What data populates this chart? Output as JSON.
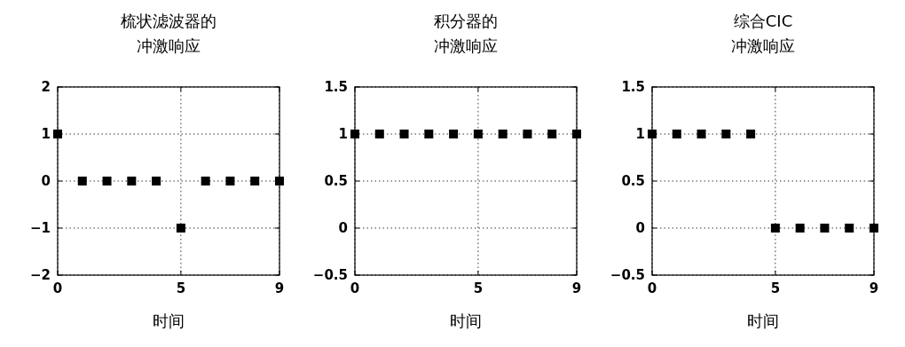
{
  "chart_data": [
    {
      "type": "scatter",
      "title": "梳状滤波器的",
      "subtitle": "冲激响应",
      "xlabel": "时间",
      "x": [
        0,
        1,
        2,
        3,
        4,
        5,
        6,
        7,
        8,
        9
      ],
      "series": [
        {
          "color": "#000000",
          "values": [
            1,
            0,
            0,
            0,
            0,
            -1,
            0,
            0,
            0,
            0
          ]
        }
      ],
      "xlim": [
        0,
        9
      ],
      "xticks": [
        0,
        5,
        9
      ],
      "ylim": [
        -2,
        2
      ],
      "yticks": [
        -2,
        -1,
        0,
        1,
        2
      ],
      "grid": true,
      "marker": "square"
    },
    {
      "type": "scatter",
      "title": "积分器的",
      "subtitle": "冲激响应",
      "xlabel": "时间",
      "x": [
        0,
        1,
        2,
        3,
        4,
        5,
        6,
        7,
        8,
        9
      ],
      "series": [
        {
          "color": "#000000",
          "values": [
            1,
            1,
            1,
            1,
            1,
            1,
            1,
            1,
            1,
            1
          ]
        }
      ],
      "xlim": [
        0,
        9
      ],
      "xticks": [
        0,
        5,
        9
      ],
      "ylim": [
        -0.5,
        1.5
      ],
      "yticks": [
        -0.5,
        0,
        0.5,
        1,
        1.5
      ],
      "grid": true,
      "marker": "square"
    },
    {
      "type": "scatter",
      "title": "综合CIC",
      "subtitle": "冲激响应",
      "xlabel": "时间",
      "x": [
        0,
        1,
        2,
        3,
        4,
        5,
        6,
        7,
        8,
        9
      ],
      "series": [
        {
          "color": "#000000",
          "values": [
            1,
            1,
            1,
            1,
            1,
            0,
            0,
            0,
            0,
            0
          ]
        }
      ],
      "xlim": [
        0,
        9
      ],
      "xticks": [
        0,
        5,
        9
      ],
      "ylim": [
        -0.5,
        1.5
      ],
      "yticks": [
        -0.5,
        0,
        0.5,
        1,
        1.5
      ],
      "grid": true,
      "marker": "square"
    }
  ]
}
